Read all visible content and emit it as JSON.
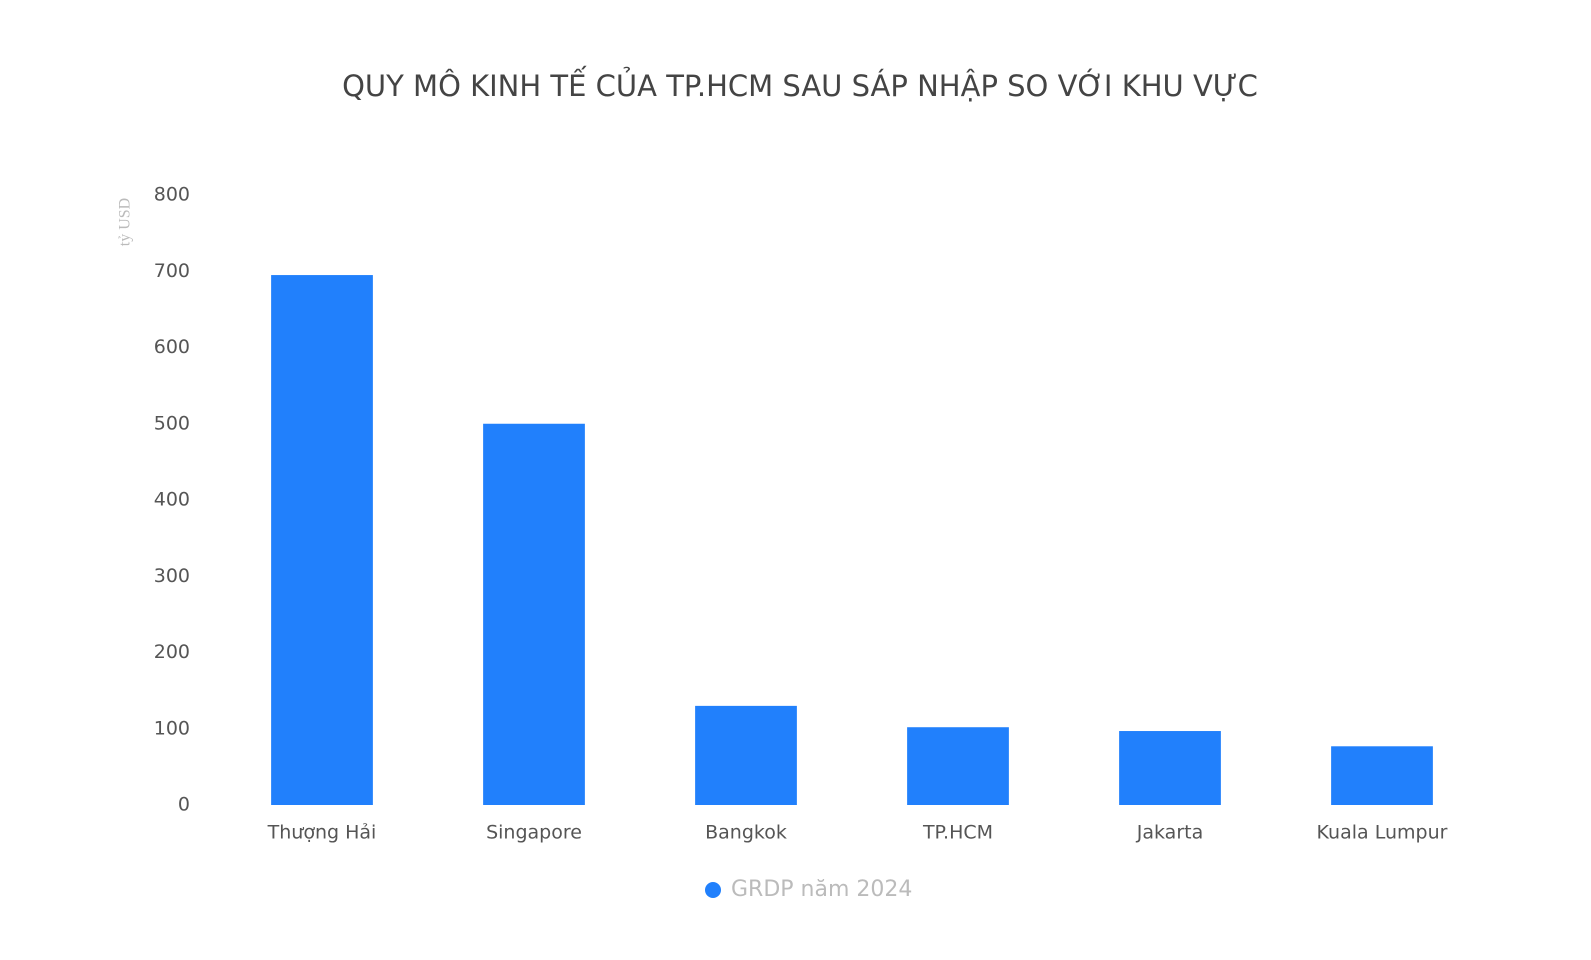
{
  "chart_data": {
    "type": "bar",
    "title": "QUY MÔ KINH TẾ CỦA TP.HCM SAU SÁP NHẬP SO VỚI KHU VỰC",
    "y_label": "tỷ USD",
    "categories": [
      "Thượng Hải",
      "Singapore",
      "Bangkok",
      "TP.HCM",
      "Jakarta",
      "Kuala Lumpur"
    ],
    "series": [
      {
        "name": "GRDP năm 2024",
        "color": "#2180fc",
        "values": [
          695,
          500,
          130,
          102,
          97,
          77
        ]
      }
    ],
    "ylim": [
      0,
      800
    ],
    "yticks": [
      0,
      100,
      200,
      300,
      400,
      500,
      600,
      700,
      800
    ],
    "grid": false,
    "legend": "bottom"
  }
}
